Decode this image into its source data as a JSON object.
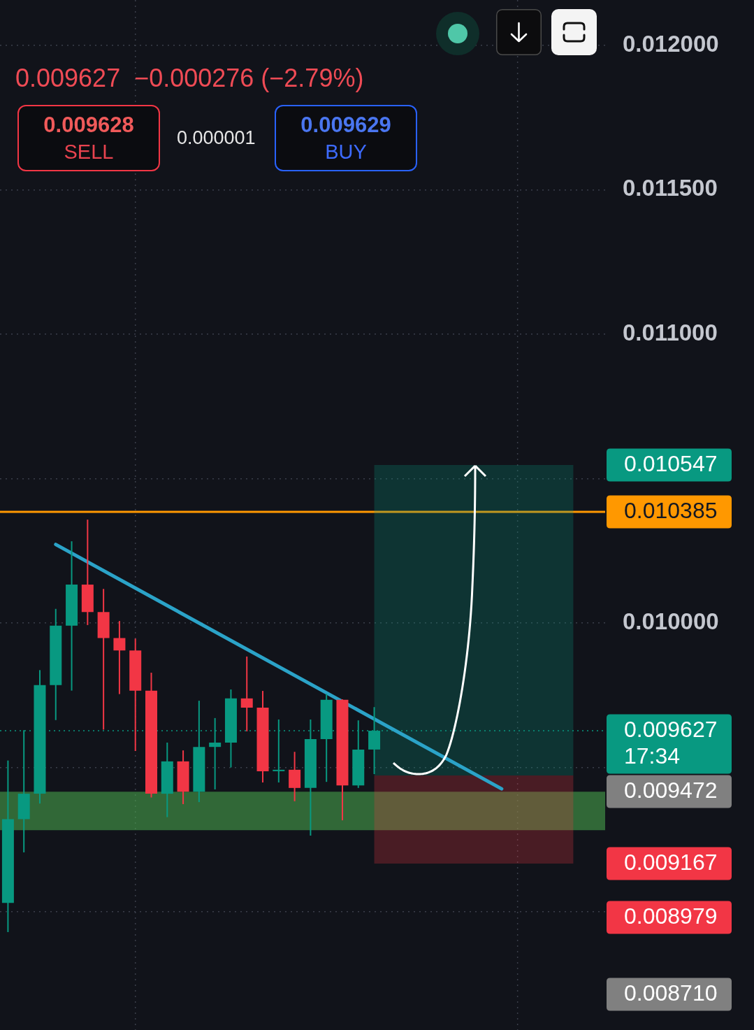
{
  "chart_data": {
    "type": "candlestick",
    "subtitle": "0.009627  −0.000276 (−2.79%)",
    "categories": [
      null,
      null,
      null,
      null,
      null,
      null,
      null,
      null,
      null,
      null,
      null,
      null,
      null,
      null,
      null,
      null,
      null,
      null,
      null,
      null,
      null,
      null,
      null,
      null,
      null,
      null,
      null,
      null,
      null,
      null,
      null,
      null,
      null,
      null,
      null,
      null,
      null,
      null
    ],
    "ohlc": [
      [
        0.009031,
        0.009524,
        0.00893,
        0.009321
      ],
      [
        0.009321,
        0.009629,
        0.009206,
        0.009409
      ],
      [
        0.009409,
        0.009837,
        0.009375,
        0.009785
      ],
      [
        0.009785,
        0.010049,
        0.009664,
        0.009991
      ],
      [
        0.009991,
        0.010283,
        0.009766,
        0.010133
      ],
      [
        0.010133,
        0.010358,
        0.009993,
        0.010038
      ],
      [
        0.010038,
        0.010118,
        0.009631,
        0.009948
      ],
      [
        0.009948,
        0.010007,
        0.009754,
        0.009905
      ],
      [
        0.009905,
        0.009946,
        0.009557,
        0.009766
      ],
      [
        0.009766,
        0.009828,
        0.009396,
        0.009409
      ],
      [
        0.009409,
        0.009586,
        0.009328,
        0.009521
      ],
      [
        0.009521,
        0.009559,
        0.009373,
        0.009416
      ],
      [
        0.009416,
        0.009731,
        0.00938,
        0.009571
      ],
      [
        0.009571,
        0.009671,
        0.009424,
        0.009586
      ],
      [
        0.009586,
        0.00977,
        0.0095,
        0.009739
      ],
      [
        0.009739,
        0.009884,
        0.009625,
        0.009707
      ],
      [
        0.009707,
        0.009765,
        0.009448,
        0.009487
      ],
      [
        0.009487,
        0.009666,
        0.009448,
        0.009492
      ],
      [
        0.009492,
        0.009554,
        0.009383,
        0.009429
      ],
      [
        0.009429,
        0.009666,
        0.009264,
        0.009598
      ],
      [
        0.009598,
        0.009755,
        0.00945,
        0.009734
      ],
      [
        0.009734,
        0.009736,
        0.009317,
        0.009438
      ],
      [
        0.009438,
        0.009663,
        0.009429,
        0.009562
      ],
      [
        0.009562,
        0.009709,
        0.009477,
        0.009627
      ],
      null,
      null,
      null,
      null,
      null,
      null,
      null,
      null,
      null,
      null,
      null,
      null,
      null,
      null
    ],
    "colors": [
      "#089981",
      "#089981",
      "#089981",
      "#089981",
      "#089981",
      "#f23645",
      "#f23645",
      "#f23645",
      "#f23645",
      "#f23645",
      "#089981",
      "#f23645",
      "#089981",
      "#089981",
      "#089981",
      "#f23645",
      "#f23645",
      "#089981",
      "#f23645",
      "#089981",
      "#089981",
      "#f23645",
      "#089981",
      "#089981",
      null,
      null,
      null,
      null,
      null,
      null,
      null,
      null,
      null,
      null,
      null,
      null,
      null,
      null
    ],
    "series": [
      {
        "type": "line",
        "color": "#2ba3c8",
        "values": [
          null,
          null,
          null,
          0.010272,
          null,
          null,
          null,
          null,
          null,
          null,
          null,
          null,
          null,
          null,
          null,
          null,
          null,
          null,
          null,
          null,
          null,
          null,
          null,
          null,
          null,
          null,
          null,
          null,
          null,
          null,
          null,
          0.009426,
          null,
          null,
          null,
          null,
          null,
          null
        ]
      }
    ],
    "ylim": [
      0.008591,
      0.012157
    ],
    "yticks": [
      {
        "value": 0.009,
        "label": null
      },
      {
        "value": 0.0095,
        "label": null
      },
      {
        "value": 0.01,
        "label": "0.010000"
      },
      {
        "value": 0.0105,
        "label": null
      },
      {
        "value": 0.011,
        "label": "0.011000"
      },
      {
        "value": 0.0115,
        "label": "0.011500"
      },
      {
        "value": 0.012,
        "label": "0.012000"
      }
    ],
    "grid": true,
    "tick_labels": "y",
    "ref_lines": [
      {
        "axis": "y",
        "value": 0.010385,
        "label": "0.010385",
        "color": "#ff9800"
      },
      {
        "axis": "y",
        "value": 0.009627,
        "label": "0.009627\n17:34",
        "color": "#089981",
        "line_style": "dotted"
      }
    ],
    "bands": [
      {
        "axis": "y",
        "from": 0.009283,
        "to": 0.009416,
        "color": "#4caf50"
      },
      {
        "axis": "y",
        "from": 0.009472,
        "to": 0.010547,
        "label": "0.010547",
        "color": "#089981"
      },
      {
        "axis": "y",
        "from": 0.009472,
        "to": 0.009167,
        "label": "0.009167",
        "color": "#f23645"
      }
    ],
    "annotations": [
      "0.009628",
      "SELL",
      "0.000001",
      "0.009629",
      "BUY",
      "0.009472",
      "0.008979",
      "0.008710"
    ]
  }
}
